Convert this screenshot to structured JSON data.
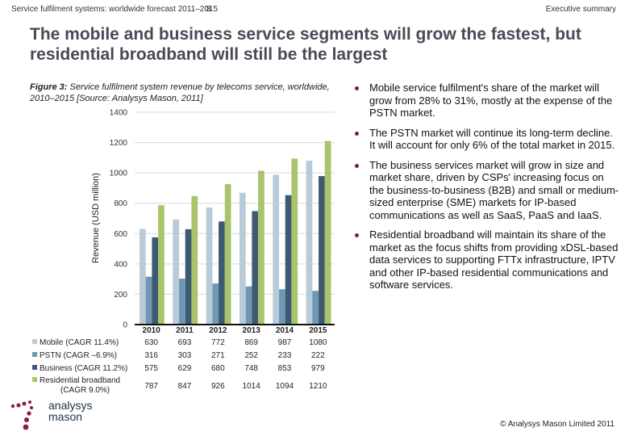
{
  "header": {
    "left": "Service fulfilment systems: worldwide forecast 2011–2015",
    "page_number": "8",
    "right": "Executive summary"
  },
  "title": "The mobile and business service segments will grow the fastest, but residential broadband will still be the largest",
  "caption": {
    "label": "Figure 3:",
    "text": " Service fulfilment system revenue by telecoms service, worldwide, 2010–2015 [Source: Analysys Mason, 2011]"
  },
  "bullets": [
    "Mobile service fulfilment's share of the market will grow from 28% to 31%, mostly at the expense of the PSTN market.",
    "The PSTN market will continue its long-term decline. It will account for only 6% of the total market in 2015.",
    "The business services market will grow in size and market share, driven by CSPs' increasing focus on the business-to-business (B2B) and small or medium-sized enterprise (SME) markets for IP-based communications as well as SaaS, PaaS and IaaS.",
    "Residential broadband will maintain its share of the market as the focus shifts from providing xDSL-based data services to supporting FTTx infrastructure, IPTV and other IP-based residential communications and software services."
  ],
  "logo": {
    "line1": "analysys",
    "line2": "mason"
  },
  "copyright": "© Analysys Mason Limited 2011",
  "colors": {
    "bullet": "#7a1f35",
    "logo_dots": "#8b1e3a",
    "logo_text": "#1e3145"
  },
  "chart_data": {
    "type": "bar",
    "title": "Service fulfilment system revenue by telecoms service, worldwide, 2010–2015",
    "xlabel": "",
    "ylabel": "Revenue (USD million)",
    "ylim": [
      0,
      1400
    ],
    "yticks": [
      0,
      200,
      400,
      600,
      800,
      1000,
      1200,
      1400
    ],
    "grid": true,
    "legend": "bottom-table",
    "categories": [
      "2010",
      "2011",
      "2012",
      "2013",
      "2014",
      "2015"
    ],
    "series": [
      {
        "name": "Mobile (CAGR 11.4%)",
        "color": "#b9cad9",
        "values": [
          630,
          693,
          772,
          869,
          987,
          1080
        ]
      },
      {
        "name": "PSTN (CAGR –6.9%)",
        "color": "#6f98b5",
        "values": [
          316,
          303,
          271,
          252,
          233,
          222
        ]
      },
      {
        "name": "Business (CAGR 11.2%)",
        "color": "#3d5a72",
        "values": [
          575,
          629,
          680,
          748,
          853,
          979
        ]
      },
      {
        "name": "Residential broadband (CAGR 9.0%)",
        "color": "#a9c46a",
        "values": [
          787,
          847,
          926,
          1014,
          1094,
          1210
        ]
      }
    ]
  }
}
